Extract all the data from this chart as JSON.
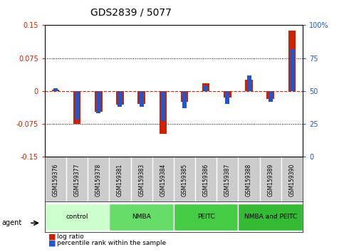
{
  "title": "GDS2839 / 5077",
  "samples": [
    "GSM159376",
    "GSM159377",
    "GSM159378",
    "GSM159381",
    "GSM159383",
    "GSM159384",
    "GSM159385",
    "GSM159386",
    "GSM159387",
    "GSM159388",
    "GSM159389",
    "GSM159390"
  ],
  "log_ratio": [
    0.003,
    -0.075,
    -0.048,
    -0.032,
    -0.03,
    -0.098,
    -0.025,
    0.018,
    -0.015,
    0.025,
    -0.018,
    0.138
  ],
  "pct_rank": [
    0.52,
    0.28,
    0.33,
    0.38,
    0.38,
    0.27,
    0.37,
    0.54,
    0.4,
    0.62,
    0.42,
    0.82
  ],
  "groups": [
    {
      "label": "control",
      "start": 0,
      "end": 3,
      "color": "#ccffcc"
    },
    {
      "label": "NMBA",
      "start": 3,
      "end": 6,
      "color": "#66dd66"
    },
    {
      "label": "PEITC",
      "start": 6,
      "end": 9,
      "color": "#44cc44"
    },
    {
      "label": "NMBA and PEITC",
      "start": 9,
      "end": 12,
      "color": "#33bb33"
    }
  ],
  "ylim": [
    -0.15,
    0.15
  ],
  "yticks": [
    -0.15,
    -0.075,
    0.0,
    0.075,
    0.15
  ],
  "ytick_labels_left": [
    "-0.15",
    "-0.075",
    "0",
    "0.075",
    "0.15"
  ],
  "ytick_labels_right": [
    "0",
    "25",
    "50",
    "75",
    "100%"
  ],
  "bar_color_red": "#cc2200",
  "bar_color_blue": "#2255cc",
  "bar_width": 0.35,
  "pct_bar_width": 0.2,
  "background_color": "#ffffff",
  "plot_bg_color": "#ffffff",
  "sample_bg_color": "#cccccc",
  "group_colors": [
    "#ccffcc",
    "#66dd66",
    "#44cc44",
    "#33bb33"
  ],
  "legend_red_label": "log ratio",
  "legend_blue_label": "percentile rank within the sample"
}
